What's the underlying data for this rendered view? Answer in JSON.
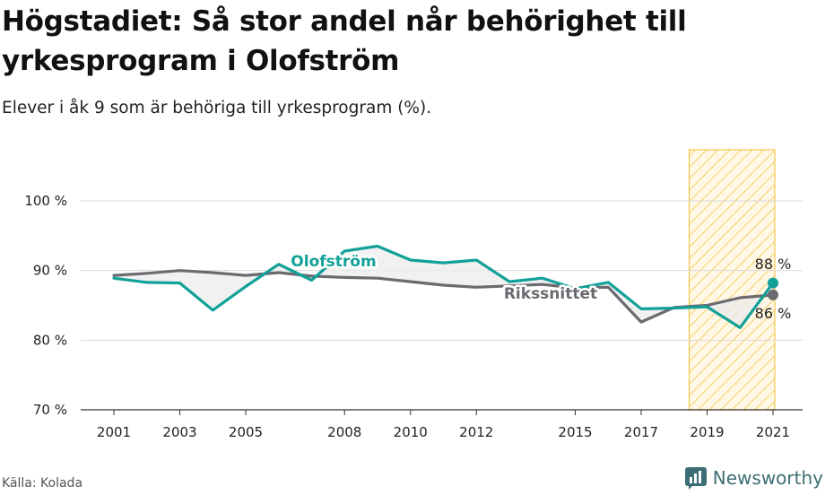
{
  "title": "Högstadiet: Så stor andel når behörighet till yrkesprogram i Olofström",
  "subtitle": "Elever i åk 9 som är behöriga till yrkesprogram (%).",
  "source": "Källa: Kolada",
  "brand": "Newsworthy",
  "colors": {
    "olofstrom": "#12a198",
    "riksnittet": "#6b6a70",
    "highlight_fill": "#f6c64a",
    "fill_between": "#ececec"
  },
  "chart_data": {
    "type": "line",
    "x": [
      2001,
      2002,
      2003,
      2004,
      2005,
      2006,
      2007,
      2008,
      2009,
      2010,
      2011,
      2012,
      2013,
      2014,
      2015,
      2016,
      2017,
      2018,
      2019,
      2020,
      2021
    ],
    "series": [
      {
        "name": "Olofström",
        "values": [
          88.9,
          88.3,
          88.2,
          84.3,
          87.7,
          90.9,
          88.6,
          92.8,
          93.5,
          91.5,
          91.1,
          91.5,
          88.4,
          88.9,
          87.4,
          88.3,
          84.5,
          84.6,
          84.8,
          81.8,
          88.2
        ]
      },
      {
        "name": "Rikssnittet",
        "values": [
          89.3,
          89.6,
          90.0,
          89.7,
          89.3,
          89.7,
          89.2,
          89.0,
          88.9,
          88.4,
          87.9,
          87.6,
          87.8,
          88.0,
          87.5,
          87.6,
          82.6,
          84.7,
          85.0,
          86.1,
          86.5
        ]
      }
    ],
    "ylim": [
      70,
      100
    ],
    "yticks": [
      70,
      80,
      90,
      100
    ],
    "ytick_labels": [
      "70 %",
      "80 %",
      "90 %",
      "100 %"
    ],
    "xtick_labels": [
      "2001",
      "2003",
      "2005",
      "2008",
      "2010",
      "2012",
      "2015",
      "2017",
      "2019",
      "2021"
    ],
    "highlight_range": [
      2019,
      2021
    ],
    "end_labels": {
      "olofstrom": "88 %",
      "riksnittet": "86 %"
    },
    "grid": true
  }
}
